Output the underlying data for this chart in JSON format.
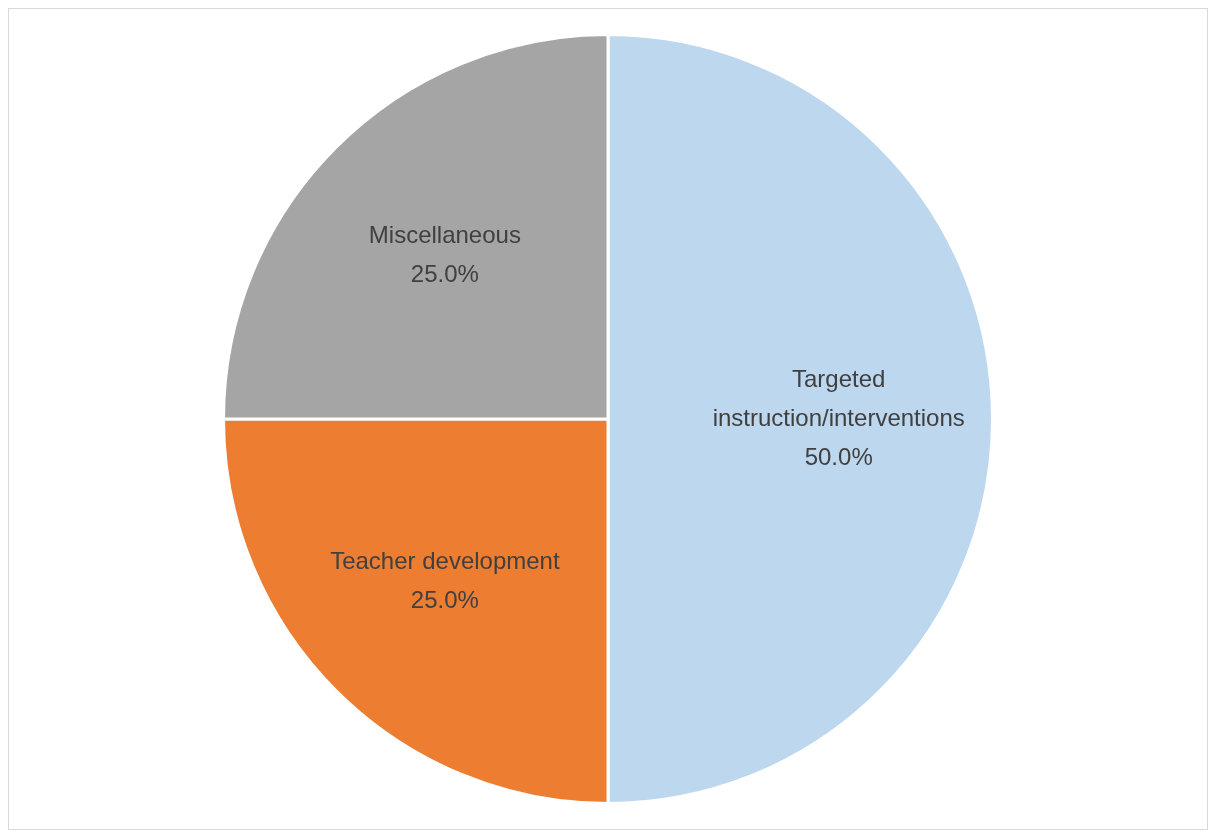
{
  "chart_data": {
    "type": "pie",
    "categories": [
      "Targeted instruction/interventions",
      "Teacher development",
      "Miscellaneous"
    ],
    "values": [
      50,
      25,
      25
    ],
    "value_labels": [
      "50.0%",
      "25.0%",
      "25.0%"
    ],
    "colors": [
      "#bdd7ee",
      "#ed7d31",
      "#a5a5a5"
    ],
    "legend": false
  }
}
